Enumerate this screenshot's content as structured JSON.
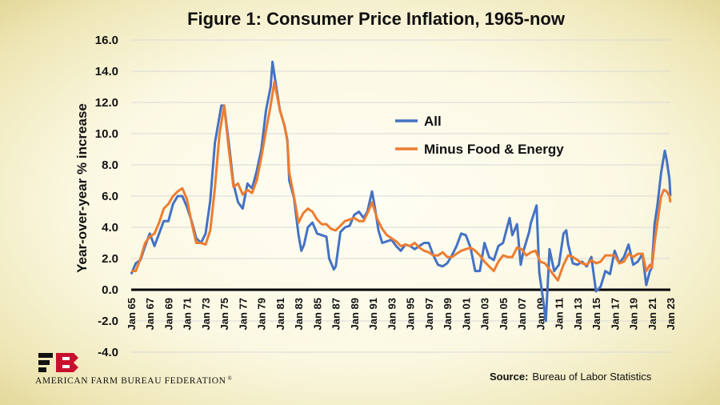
{
  "chart_data": {
    "type": "line",
    "title": "Figure 1: Consumer Price Inflation, 1965-now",
    "ylabel": "Year-over-year % increase",
    "xlabel": "",
    "ylim": [
      -4.0,
      16.0
    ],
    "yticks": [
      "16.0",
      "14.0",
      "12.0",
      "10.0",
      "8.0",
      "6.0",
      "4.0",
      "2.0",
      "0.0",
      "-2.0",
      "-4.0"
    ],
    "xlim": [
      1965,
      2023
    ],
    "xticks": [
      "Jan 65",
      "Jan 67",
      "Jan 69",
      "Jan 71",
      "Jan 73",
      "Jan 75",
      "Jan 77",
      "Jan 79",
      "Jan 81",
      "Jan 83",
      "Jan 85",
      "Jan 87",
      "Jan 89",
      "Jan 91",
      "Jan 93",
      "Jan 95",
      "Jan 97",
      "Jan 99",
      "Jan 01",
      "Jan 03",
      "Jan 05",
      "Jan 07",
      "Jan 09",
      "Jan 11",
      "Jan 13",
      "Jan 15",
      "Jan 17",
      "Jan 19",
      "Jan 21",
      "Jan 23"
    ],
    "grid": true,
    "legend_position": "upper-center",
    "series": [
      {
        "name": "All",
        "color": "#4472c4",
        "points": [
          [
            1965.0,
            1.0
          ],
          [
            1965.5,
            1.7
          ],
          [
            1966.0,
            1.9
          ],
          [
            1966.5,
            2.8
          ],
          [
            1967.0,
            3.6
          ],
          [
            1967.5,
            2.8
          ],
          [
            1968.0,
            3.6
          ],
          [
            1968.5,
            4.4
          ],
          [
            1969.0,
            4.4
          ],
          [
            1969.5,
            5.5
          ],
          [
            1970.0,
            6.0
          ],
          [
            1970.5,
            6.0
          ],
          [
            1971.0,
            5.3
          ],
          [
            1971.5,
            4.4
          ],
          [
            1972.0,
            3.3
          ],
          [
            1972.5,
            3.0
          ],
          [
            1973.0,
            3.6
          ],
          [
            1973.5,
            5.7
          ],
          [
            1974.0,
            9.4
          ],
          [
            1974.7,
            11.8
          ],
          [
            1975.0,
            11.8
          ],
          [
            1975.5,
            9.4
          ],
          [
            1976.0,
            6.8
          ],
          [
            1976.5,
            5.6
          ],
          [
            1977.0,
            5.2
          ],
          [
            1977.5,
            6.8
          ],
          [
            1978.0,
            6.5
          ],
          [
            1978.5,
            7.6
          ],
          [
            1979.0,
            9.0
          ],
          [
            1979.5,
            11.5
          ],
          [
            1980.0,
            13.0
          ],
          [
            1980.2,
            14.6
          ],
          [
            1980.6,
            13.0
          ],
          [
            1981.0,
            11.5
          ],
          [
            1981.5,
            10.5
          ],
          [
            1981.8,
            9.6
          ],
          [
            1982.0,
            7.0
          ],
          [
            1982.5,
            5.9
          ],
          [
            1983.0,
            3.5
          ],
          [
            1983.3,
            2.5
          ],
          [
            1983.6,
            2.9
          ],
          [
            1984.0,
            4.0
          ],
          [
            1984.5,
            4.3
          ],
          [
            1985.0,
            3.6
          ],
          [
            1985.5,
            3.5
          ],
          [
            1986.0,
            3.4
          ],
          [
            1986.3,
            2.0
          ],
          [
            1986.8,
            1.3
          ],
          [
            1987.0,
            1.5
          ],
          [
            1987.5,
            3.7
          ],
          [
            1988.0,
            4.0
          ],
          [
            1988.5,
            4.1
          ],
          [
            1989.0,
            4.8
          ],
          [
            1989.5,
            5.0
          ],
          [
            1990.0,
            4.6
          ],
          [
            1990.4,
            5.0
          ],
          [
            1990.9,
            6.3
          ],
          [
            1991.2,
            5.3
          ],
          [
            1991.6,
            3.8
          ],
          [
            1992.0,
            3.0
          ],
          [
            1992.5,
            3.1
          ],
          [
            1993.0,
            3.2
          ],
          [
            1993.5,
            2.8
          ],
          [
            1994.0,
            2.5
          ],
          [
            1994.5,
            2.9
          ],
          [
            1995.0,
            2.8
          ],
          [
            1995.5,
            2.6
          ],
          [
            1996.0,
            2.8
          ],
          [
            1996.5,
            3.0
          ],
          [
            1997.0,
            3.0
          ],
          [
            1997.5,
            2.2
          ],
          [
            1998.0,
            1.6
          ],
          [
            1998.5,
            1.5
          ],
          [
            1999.0,
            1.7
          ],
          [
            1999.5,
            2.2
          ],
          [
            2000.0,
            2.8
          ],
          [
            2000.5,
            3.6
          ],
          [
            2001.0,
            3.5
          ],
          [
            2001.5,
            2.7
          ],
          [
            2002.0,
            1.2
          ],
          [
            2002.5,
            1.2
          ],
          [
            2003.0,
            3.0
          ],
          [
            2003.5,
            2.1
          ],
          [
            2004.0,
            1.9
          ],
          [
            2004.5,
            2.8
          ],
          [
            2005.0,
            3.0
          ],
          [
            2005.7,
            4.6
          ],
          [
            2006.0,
            3.5
          ],
          [
            2006.5,
            4.2
          ],
          [
            2006.9,
            1.6
          ],
          [
            2007.2,
            2.5
          ],
          [
            2007.8,
            3.7
          ],
          [
            2008.0,
            4.3
          ],
          [
            2008.6,
            5.4
          ],
          [
            2008.9,
            1.1
          ],
          [
            2009.3,
            -0.6
          ],
          [
            2009.6,
            -2.0
          ],
          [
            2010.0,
            2.6
          ],
          [
            2010.5,
            1.2
          ],
          [
            2011.0,
            1.6
          ],
          [
            2011.5,
            3.6
          ],
          [
            2011.8,
            3.8
          ],
          [
            2012.0,
            2.9
          ],
          [
            2012.5,
            1.7
          ],
          [
            2013.0,
            1.6
          ],
          [
            2013.5,
            1.8
          ],
          [
            2014.0,
            1.5
          ],
          [
            2014.5,
            2.1
          ],
          [
            2015.0,
            -0.1
          ],
          [
            2015.5,
            0.2
          ],
          [
            2016.0,
            1.2
          ],
          [
            2016.5,
            1.0
          ],
          [
            2017.0,
            2.5
          ],
          [
            2017.5,
            1.7
          ],
          [
            2018.0,
            2.1
          ],
          [
            2018.5,
            2.9
          ],
          [
            2019.0,
            1.6
          ],
          [
            2019.5,
            1.8
          ],
          [
            2020.0,
            2.3
          ],
          [
            2020.4,
            0.3
          ],
          [
            2020.8,
            1.2
          ],
          [
            2021.0,
            1.4
          ],
          [
            2021.3,
            4.2
          ],
          [
            2021.6,
            5.4
          ],
          [
            2022.0,
            7.5
          ],
          [
            2022.4,
            8.9
          ],
          [
            2022.6,
            8.3
          ],
          [
            2022.9,
            7.1
          ],
          [
            2023.0,
            6.0
          ]
        ]
      },
      {
        "name": "Minus Food & Energy",
        "color": "#ed7d31",
        "points": [
          [
            1965.0,
            1.2
          ],
          [
            1965.5,
            1.2
          ],
          [
            1966.0,
            2.0
          ],
          [
            1966.5,
            3.0
          ],
          [
            1967.0,
            3.4
          ],
          [
            1967.5,
            3.6
          ],
          [
            1968.0,
            4.3
          ],
          [
            1968.5,
            5.2
          ],
          [
            1969.0,
            5.5
          ],
          [
            1969.5,
            6.0
          ],
          [
            1970.0,
            6.3
          ],
          [
            1970.5,
            6.5
          ],
          [
            1971.0,
            5.8
          ],
          [
            1971.5,
            4.3
          ],
          [
            1972.0,
            3.0
          ],
          [
            1972.5,
            3.0
          ],
          [
            1973.0,
            2.9
          ],
          [
            1973.5,
            3.8
          ],
          [
            1974.0,
            6.5
          ],
          [
            1974.5,
            10.0
          ],
          [
            1975.0,
            11.8
          ],
          [
            1975.5,
            9.0
          ],
          [
            1976.0,
            6.6
          ],
          [
            1976.5,
            6.8
          ],
          [
            1977.0,
            6.1
          ],
          [
            1977.5,
            6.4
          ],
          [
            1978.0,
            6.2
          ],
          [
            1978.5,
            7.0
          ],
          [
            1979.0,
            8.5
          ],
          [
            1979.5,
            10.2
          ],
          [
            1980.0,
            11.8
          ],
          [
            1980.4,
            13.3
          ],
          [
            1980.8,
            12.1
          ],
          [
            1981.0,
            11.5
          ],
          [
            1981.5,
            10.5
          ],
          [
            1981.8,
            9.5
          ],
          [
            1982.0,
            7.5
          ],
          [
            1982.5,
            6.0
          ],
          [
            1983.0,
            4.3
          ],
          [
            1983.5,
            4.9
          ],
          [
            1984.0,
            5.2
          ],
          [
            1984.5,
            5.0
          ],
          [
            1985.0,
            4.5
          ],
          [
            1985.5,
            4.2
          ],
          [
            1986.0,
            4.2
          ],
          [
            1986.5,
            3.9
          ],
          [
            1987.0,
            3.8
          ],
          [
            1987.5,
            4.1
          ],
          [
            1988.0,
            4.4
          ],
          [
            1988.5,
            4.5
          ],
          [
            1989.0,
            4.6
          ],
          [
            1989.5,
            4.4
          ],
          [
            1990.0,
            4.4
          ],
          [
            1990.5,
            5.0
          ],
          [
            1990.9,
            5.6
          ],
          [
            1991.5,
            4.5
          ],
          [
            1992.0,
            3.9
          ],
          [
            1992.5,
            3.5
          ],
          [
            1993.0,
            3.3
          ],
          [
            1993.5,
            3.1
          ],
          [
            1994.0,
            2.8
          ],
          [
            1994.5,
            2.9
          ],
          [
            1995.0,
            2.8
          ],
          [
            1995.5,
            3.0
          ],
          [
            1996.0,
            2.7
          ],
          [
            1996.5,
            2.5
          ],
          [
            1997.0,
            2.4
          ],
          [
            1997.5,
            2.2
          ],
          [
            1998.0,
            2.2
          ],
          [
            1998.5,
            2.4
          ],
          [
            1999.0,
            2.1
          ],
          [
            1999.5,
            2.1
          ],
          [
            2000.0,
            2.3
          ],
          [
            2000.5,
            2.5
          ],
          [
            2001.0,
            2.6
          ],
          [
            2001.5,
            2.7
          ],
          [
            2002.0,
            2.5
          ],
          [
            2002.5,
            2.2
          ],
          [
            2003.0,
            1.8
          ],
          [
            2003.5,
            1.5
          ],
          [
            2004.0,
            1.2
          ],
          [
            2004.5,
            1.8
          ],
          [
            2005.0,
            2.2
          ],
          [
            2005.5,
            2.1
          ],
          [
            2006.0,
            2.1
          ],
          [
            2006.5,
            2.7
          ],
          [
            2007.0,
            2.6
          ],
          [
            2007.5,
            2.2
          ],
          [
            2008.0,
            2.4
          ],
          [
            2008.5,
            2.5
          ],
          [
            2009.0,
            1.8
          ],
          [
            2009.5,
            1.7
          ],
          [
            2010.0,
            1.3
          ],
          [
            2010.5,
            0.9
          ],
          [
            2010.9,
            0.6
          ],
          [
            2011.5,
            1.6
          ],
          [
            2012.0,
            2.2
          ],
          [
            2012.5,
            2.1
          ],
          [
            2013.0,
            1.9
          ],
          [
            2013.5,
            1.7
          ],
          [
            2014.0,
            1.6
          ],
          [
            2014.5,
            1.9
          ],
          [
            2015.0,
            1.7
          ],
          [
            2015.5,
            1.8
          ],
          [
            2016.0,
            2.2
          ],
          [
            2016.5,
            2.2
          ],
          [
            2017.0,
            2.2
          ],
          [
            2017.5,
            1.7
          ],
          [
            2018.0,
            1.8
          ],
          [
            2018.5,
            2.3
          ],
          [
            2019.0,
            2.1
          ],
          [
            2019.5,
            2.3
          ],
          [
            2020.0,
            2.3
          ],
          [
            2020.4,
            1.2
          ],
          [
            2020.8,
            1.6
          ],
          [
            2021.0,
            1.4
          ],
          [
            2021.3,
            3.0
          ],
          [
            2021.6,
            4.3
          ],
          [
            2022.0,
            6.0
          ],
          [
            2022.3,
            6.4
          ],
          [
            2022.6,
            6.3
          ],
          [
            2022.9,
            6.0
          ],
          [
            2023.0,
            5.6
          ]
        ]
      }
    ]
  },
  "footer": {
    "logo_alt": "FB",
    "org_name": "AMERICAN FARM BUREAU FEDERATION",
    "reg_mark": "®",
    "source_label": "Source:",
    "source_text": "Bureau of Labor Statistics"
  }
}
